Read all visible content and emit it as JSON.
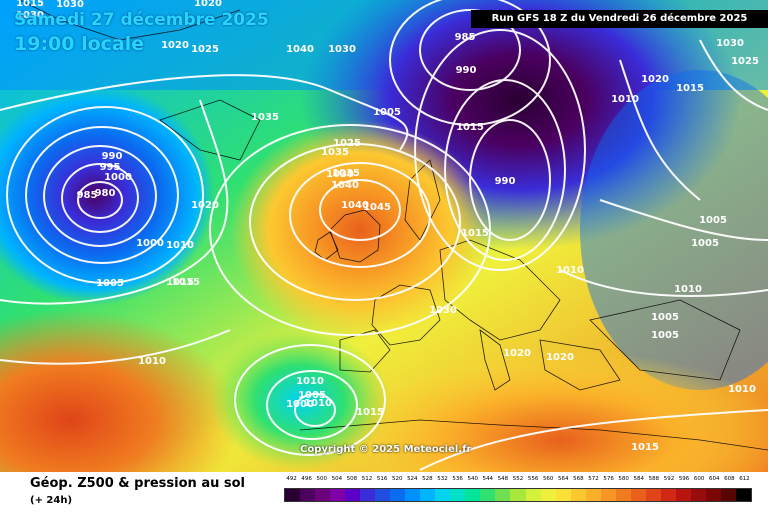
{
  "header": {
    "date": "Samedi 27 décembre 2025",
    "time": "19:00 locale",
    "run": "Run GFS 18 Z du Vendredi 26 décembre 2025"
  },
  "copyright": "Copyright © 2025 Meteociel.fr",
  "footer": {
    "title": "Géop. Z500 & pression au sol",
    "subtitle": "(+ 24h)"
  },
  "scale": {
    "labels": [
      "492",
      "496",
      "500",
      "504",
      "508",
      "512",
      "516",
      "520",
      "524",
      "528",
      "532",
      "536",
      "540",
      "544",
      "548",
      "552",
      "556",
      "560",
      "564",
      "568",
      "572",
      "576",
      "580",
      "584",
      "588",
      "592",
      "596",
      "600",
      "604",
      "608",
      "612"
    ],
    "colors": [
      "#2a0033",
      "#4b0060",
      "#6a007a",
      "#7f00a8",
      "#5a00c8",
      "#3a2cd8",
      "#1f4ee0",
      "#0a6cf0",
      "#0090ff",
      "#00b4ff",
      "#00d2f0",
      "#00e0c8",
      "#00e49a",
      "#30e070",
      "#70e050",
      "#a8e83c",
      "#d4f03a",
      "#f0f03c",
      "#fbe038",
      "#fcc830",
      "#fbb02a",
      "#f79624",
      "#f07c20",
      "#e8601c",
      "#e04418",
      "#d02814",
      "#b81410",
      "#9a0c0c",
      "#7a0606",
      "#560404",
      "#000000"
    ]
  },
  "isobar_labels": [
    "1015",
    "1030",
    "1020",
    "1025",
    "1035",
    "1040",
    "1030",
    "985",
    "990",
    "1030",
    "1025",
    "1030",
    "1020",
    "1015",
    "1010",
    "1005",
    "990",
    "995",
    "1000",
    "985",
    "980",
    "1035",
    "1025",
    "1030",
    "1020",
    "1035",
    "1040",
    "1040",
    "1045",
    "990",
    "1000",
    "1010",
    "1015",
    "1020",
    "1005",
    "1015",
    "1010",
    "1005",
    "1010",
    "1005",
    "1005",
    "1030",
    "1020",
    "1020",
    "1015",
    "1010",
    "1005",
    "1010",
    "1015",
    "1010",
    "1000",
    "1005",
    "1015",
    "1010",
    "1015"
  ],
  "icons": {
    "map": "weather-map-icon"
  }
}
